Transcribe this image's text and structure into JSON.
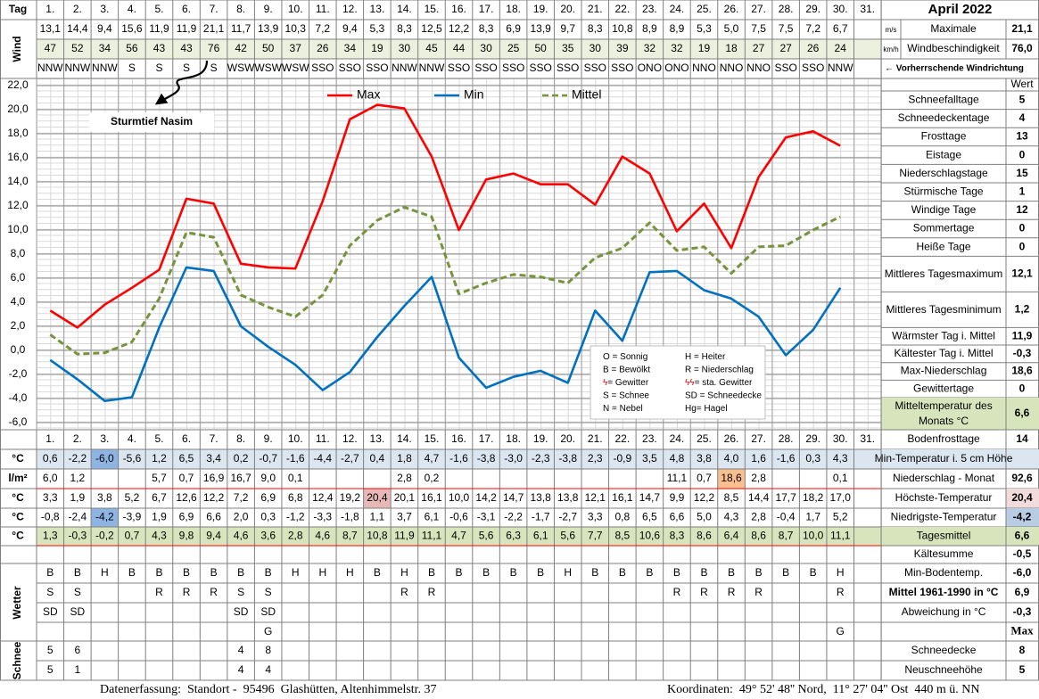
{
  "header": {
    "tag": "Tag",
    "wind": "Wind",
    "month": "April 2022",
    "unit_ms": "m/s",
    "max_label": "Maximale",
    "max_ms": "21,1",
    "unit_kmh": "km/h",
    "speed_label": "Windbeschindigkeit",
    "max_kmh": "76,0",
    "dir_note": "← Vorherrschende Windrichtung",
    "extra_day": "31."
  },
  "wind": {
    "ms": [
      "13,1",
      "14,4",
      "9,4",
      "15,6",
      "11,9",
      "11,9",
      "21,1",
      "11,7",
      "13,9",
      "10,3",
      "7,2",
      "9,4",
      "5,3",
      "8,3",
      "12,5",
      "12,2",
      "8,3",
      "6,9",
      "13,9",
      "9,7",
      "8,3",
      "10,8",
      "8,9",
      "8,9",
      "5,3",
      "5,0",
      "7,5",
      "7,5",
      "7,2",
      "6,7"
    ],
    "kmh": [
      "47",
      "52",
      "34",
      "56",
      "43",
      "43",
      "76",
      "42",
      "50",
      "37",
      "26",
      "34",
      "19",
      "30",
      "45",
      "44",
      "30",
      "25",
      "50",
      "35",
      "30",
      "39",
      "32",
      "32",
      "19",
      "18",
      "27",
      "27",
      "26",
      "24"
    ],
    "dir": [
      "NNW",
      "NNW",
      "NNW",
      "S",
      "S",
      "S",
      "S",
      "WSW",
      "WSW",
      "WSW",
      "SSO",
      "SSO",
      "SSO",
      "NNW",
      "NNW",
      "SSO",
      "SSO",
      "SSO",
      "SSO",
      "SSO",
      "SSO",
      "SSO",
      "ONO",
      "ONO",
      "NNO",
      "NNO",
      "NNO",
      "SSO",
      "SSO",
      "NNW"
    ]
  },
  "chart_data": {
    "type": "line",
    "categories": [
      "1.",
      "2.",
      "3.",
      "4.",
      "5.",
      "6.",
      "7.",
      "8.",
      "9.",
      "10.",
      "11.",
      "12.",
      "13.",
      "14.",
      "15.",
      "16.",
      "17.",
      "18.",
      "19.",
      "20.",
      "21.",
      "22.",
      "23.",
      "24.",
      "25.",
      "26.",
      "27.",
      "28.",
      "29.",
      "30."
    ],
    "category_colors": [
      "#000000",
      "#000000",
      "#ff0000",
      "#000000",
      "#000000",
      "#000000",
      "#000000",
      "#000000",
      "#000000",
      "#ff0000",
      "#000000",
      "#000000",
      "#000000",
      "#000000",
      "#ff0000",
      "#000000",
      "#ff0000",
      "#ff0000",
      "#000000",
      "#000000",
      "#000000",
      "#000000",
      "#000000",
      "#ff0000",
      "#000000",
      "#000000",
      "#000000",
      "#000000",
      "#000000",
      "#000000"
    ],
    "ylim": [
      -6,
      22
    ],
    "yticks": [
      {
        "value": -6,
        "label": "-6,0"
      },
      {
        "value": -4,
        "label": "-4,0"
      },
      {
        "value": -2,
        "label": "-2,0"
      },
      {
        "value": 0,
        "label": "0,0"
      },
      {
        "value": 2,
        "label": "2,0"
      },
      {
        "value": 4,
        "label": "4,0"
      },
      {
        "value": 6,
        "label": "6,0"
      },
      {
        "value": 8,
        "label": "8,0"
      },
      {
        "value": 10,
        "label": "10,0"
      },
      {
        "value": 12,
        "label": "12,0"
      },
      {
        "value": 14,
        "label": "14,0"
      },
      {
        "value": 16,
        "label": "16,0"
      },
      {
        "value": 18,
        "label": "18,0"
      },
      {
        "value": 20,
        "label": "20,0"
      },
      {
        "value": 22,
        "label": "22,0"
      }
    ],
    "grid": true,
    "annotation": "Sturmtief Nasim",
    "series": [
      {
        "name": "Max",
        "color": "#ff0000",
        "unit": "°C",
        "highlight": "max",
        "highlight_color": "#e6b8b7",
        "values": [
          3.3,
          1.9,
          3.8,
          5.2,
          6.7,
          12.6,
          12.2,
          7.2,
          6.9,
          6.8,
          12.4,
          19.2,
          20.4,
          20.1,
          16.1,
          10.0,
          14.2,
          14.7,
          13.8,
          13.8,
          12.1,
          16.1,
          14.7,
          9.9,
          12.2,
          8.5,
          14.4,
          17.7,
          18.2,
          17.0
        ],
        "value_labels": [
          "3,3",
          "1,9",
          "3,8",
          "5,2",
          "6,7",
          "12,6",
          "12,2",
          "7,2",
          "6,9",
          "6,8",
          "12,4",
          "19,2",
          "20,4",
          "20,1",
          "16,1",
          "10,0",
          "14,2",
          "14,7",
          "13,8",
          "13,8",
          "12,1",
          "16,1",
          "14,7",
          "9,9",
          "12,2",
          "8,5",
          "14,4",
          "17,7",
          "18,2",
          "17,0"
        ]
      },
      {
        "name": "Min",
        "color": "#0070c0",
        "unit": "°C",
        "highlight": "min",
        "highlight_color": "#8db4e2",
        "values": [
          -0.8,
          -2.4,
          -4.2,
          -3.9,
          1.9,
          6.9,
          6.6,
          2.0,
          0.3,
          -1.2,
          -3.3,
          -1.8,
          1.1,
          3.7,
          6.1,
          -0.6,
          -3.1,
          -2.2,
          -1.7,
          -2.7,
          3.3,
          0.8,
          6.5,
          6.6,
          5.0,
          4.3,
          2.8,
          -0.4,
          1.7,
          5.2
        ],
        "value_labels": [
          "-0,8",
          "-2,4",
          "-4,2",
          "-3,9",
          "1,9",
          "6,9",
          "6,6",
          "2,0",
          "0,3",
          "-1,2",
          "-3,3",
          "-1,8",
          "1,1",
          "3,7",
          "6,1",
          "-0,6",
          "-3,1",
          "-2,2",
          "-1,7",
          "-2,7",
          "3,3",
          "0,8",
          "6,5",
          "6,6",
          "5,0",
          "4,3",
          "2,8",
          "-0,4",
          "1,7",
          "5,2"
        ]
      },
      {
        "name": "Mittel",
        "color": "#77933c",
        "unit": "°C",
        "dashed": true,
        "row_fill": "#d8e4bc",
        "values": [
          1.3,
          -0.3,
          -0.2,
          0.7,
          4.3,
          9.8,
          9.4,
          4.6,
          3.6,
          2.8,
          4.6,
          8.7,
          10.8,
          11.9,
          11.1,
          4.7,
          5.6,
          6.3,
          6.1,
          5.6,
          7.7,
          8.5,
          10.6,
          8.3,
          8.6,
          6.4,
          8.6,
          8.7,
          10.0,
          11.1
        ],
        "value_labels": [
          "1,3",
          "-0,3",
          "-0,2",
          "0,7",
          "4,3",
          "9,8",
          "9,4",
          "4,6",
          "3,6",
          "2,8",
          "4,6",
          "8,7",
          "10,8",
          "11,9",
          "11,1",
          "4,7",
          "5,6",
          "6,3",
          "6,1",
          "5,6",
          "7,7",
          "8,5",
          "10,6",
          "8,3",
          "8,6",
          "6,4",
          "8,6",
          "8,7",
          "10,0",
          "11,1"
        ]
      }
    ]
  },
  "weather_legend": [
    {
      "symbol": "O",
      "text": " = Sonnig"
    },
    {
      "symbol": "H",
      "text": " = Heiter"
    },
    {
      "symbol": "B",
      "text": " = Bewölkt"
    },
    {
      "symbol": "R",
      "text": " = Niederschlag"
    },
    {
      "symbol": "ϟ",
      "text": "= Gewitter",
      "color": "#ff0000"
    },
    {
      "symbol": "ϟϟ",
      "text": "= sta. Gewitter",
      "color": "#ff0000"
    },
    {
      "symbol": "S",
      "text": " = Schnee"
    },
    {
      "symbol": "SD",
      "text": " = Schneedecke"
    },
    {
      "symbol": "N",
      "text": " = Nebel"
    },
    {
      "symbol": "Hg",
      "text": "= Hagel"
    }
  ],
  "table": {
    "rows": [
      {
        "unit": "°C",
        "fill": "#dce6f1",
        "highlight": "min",
        "highlight_color": "#8db4e2",
        "values": [
          "0,6",
          "-2,2",
          "-6,0",
          "-5,6",
          "1,2",
          "6,5",
          "3,4",
          "0,2",
          "-0,7",
          "-1,6",
          "-4,4",
          "-2,7",
          "0,4",
          "1,8",
          "4,7",
          "-1,6",
          "-3,8",
          "-3,0",
          "-2,3",
          "-3,8",
          "2,3",
          "-0,9",
          "3,5",
          "4,8",
          "3,8",
          "4,0",
          "1,6",
          "-1,6",
          "0,3",
          "4,3"
        ]
      },
      {
        "unit": "l/m²",
        "highlight": "max",
        "highlight_color": "#fabf8f",
        "values": [
          "6,0",
          "1,2",
          null,
          null,
          "5,7",
          "0,7",
          "16,9",
          "16,7",
          "9,0",
          "0,1",
          null,
          null,
          null,
          "2,8",
          "0,2",
          null,
          null,
          null,
          null,
          null,
          null,
          null,
          null,
          "11,1",
          "0,7",
          "18,6",
          "2,8",
          null,
          null,
          "0,1"
        ]
      }
    ],
    "wetter": {
      "label": "Wetter",
      "rows": [
        [
          "B",
          "B",
          "H",
          "B",
          "B",
          "B",
          "B",
          "B",
          "B",
          "H",
          "H",
          "H",
          "B",
          "H",
          "B",
          "B",
          "B",
          "B",
          "B",
          "H",
          "B",
          "B",
          "B",
          "B",
          "B",
          "B",
          "B",
          "B",
          "B",
          "H"
        ],
        [
          "S",
          "S",
          null,
          null,
          "R",
          "R",
          "R",
          "S",
          "S",
          null,
          null,
          null,
          null,
          "R",
          "R",
          null,
          null,
          null,
          null,
          null,
          null,
          null,
          null,
          "R",
          "R",
          "R",
          "R",
          null,
          null,
          "R"
        ],
        [
          "SD",
          "SD",
          null,
          null,
          null,
          null,
          null,
          "SD",
          "SD",
          null,
          null,
          null,
          null,
          null,
          null,
          null,
          null,
          null,
          null,
          null,
          null,
          null,
          null,
          null,
          null,
          null,
          null,
          null,
          null,
          null
        ],
        [
          null,
          null,
          null,
          null,
          null,
          null,
          null,
          null,
          "G",
          null,
          null,
          null,
          null,
          null,
          null,
          null,
          null,
          null,
          null,
          null,
          null,
          null,
          null,
          null,
          null,
          null,
          null,
          null,
          null,
          "G"
        ]
      ]
    },
    "schnee": {
      "label": "Schnee",
      "rows": [
        [
          "5",
          "6",
          null,
          null,
          null,
          null,
          null,
          "4",
          "8",
          null,
          null,
          null,
          null,
          null,
          null,
          null,
          null,
          null,
          null,
          null,
          null,
          null,
          null,
          null,
          null,
          null,
          null,
          null,
          null,
          null
        ],
        [
          "5",
          "1",
          null,
          null,
          null,
          null,
          null,
          "4",
          "4",
          null,
          null,
          null,
          null,
          null,
          null,
          null,
          null,
          null,
          null,
          null,
          null,
          null,
          null,
          null,
          null,
          null,
          null,
          null,
          null,
          null
        ]
      ]
    }
  },
  "summary": {
    "header": "Wert",
    "rows": [
      {
        "label": "Schneefalltage",
        "value": "5"
      },
      {
        "label": "Schneedeckentage",
        "value": "4"
      },
      {
        "label": "Frosttage",
        "value": "13"
      },
      {
        "label": "Eistage",
        "value": "0"
      },
      {
        "label": "Niederschlagstage",
        "value": "15"
      },
      {
        "label": "Stürmische Tage",
        "value": "1"
      },
      {
        "label": "Windige Tage",
        "value": "12"
      },
      {
        "label": "Sommertage",
        "value": "0"
      },
      {
        "label": "Heiße Tage",
        "value": "0"
      },
      {
        "label": "Mittleres Tagesmaximum",
        "value": "12,1"
      },
      {
        "label": "Mittleres Tagesminimum",
        "value": "1,2"
      },
      {
        "label": "Wärmster Tag i. Mittel",
        "value": "11,9"
      },
      {
        "label": "Kältester Tag i. Mittel",
        "value": "-0,3"
      },
      {
        "label": "Max-Niederschlag",
        "value": "18,6"
      },
      {
        "label": "Gewittertage",
        "value": "0"
      },
      {
        "label": "Mitteltemperatur des Monats °C",
        "value": "6,6",
        "fill": "#d8e4bc"
      },
      {
        "label": "Bodenfrosttage",
        "value": "14"
      },
      {
        "label": "Min-Temperatur i. 5 cm Höhe",
        "fill": "#dce6f1"
      },
      {
        "label": "Niederschlag - Monat",
        "value": "92,6"
      },
      {
        "label": "Höchste-Temperatur",
        "value": "20,4",
        "value_fill": "#f2dcdb"
      },
      {
        "label": "Niedrigste-Temperatur",
        "value": "-4,2",
        "value_fill": "#b8cce4"
      },
      {
        "label": "Tagesmittel",
        "value": "6,6",
        "fill": "#d8e4bc"
      },
      {
        "label": "Kältesumme",
        "value": "-0,5"
      },
      {
        "label": "Min-Bodentemp.",
        "value": "-6,0"
      },
      {
        "label": "Mittel 1961-1990 in °C",
        "value": "6,9",
        "bold": true
      },
      {
        "label": "Abweichung in °C",
        "value": "-0,3",
        "value_color": "#ff0000"
      },
      {
        "header": "Max"
      },
      {
        "label": "Schneedecke",
        "value": "8"
      },
      {
        "label": "Neuschneehöhe",
        "value": "5"
      }
    ]
  },
  "footer": {
    "left": "Datenerfassung:  Standort -  95496  Glashütten, Altenhimmelstr. 37",
    "right": "Koordinaten:  49° 52' 48'' Nord,  11° 27' 04'' Ost  440 m ü. NN"
  }
}
